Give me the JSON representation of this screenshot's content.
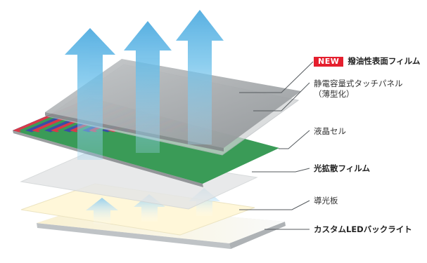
{
  "layers": [
    {
      "id": "film",
      "badge": "NEW",
      "label": "撥油性表面フィルム",
      "bold": true
    },
    {
      "id": "touch",
      "label_line1": "静電容量式タッチパネル",
      "label_line2": "（薄型化）",
      "bold": false
    },
    {
      "id": "lcd",
      "label": "液晶セル",
      "bold": false
    },
    {
      "id": "diffuser",
      "label": "光拡散フィルム",
      "bold": true
    },
    {
      "id": "lightguide",
      "label": "導光板",
      "bold": false
    },
    {
      "id": "backlight",
      "label": "カスタムLEDバックライト",
      "bold": true
    }
  ],
  "colors": {
    "badge_red": "#e51f2e",
    "arrow_blue": "#5fb9e6",
    "film_gray": "#9fa3a6",
    "lcd_red": "#d8394a",
    "lcd_green": "#3a9b57",
    "lcd_blue": "#3a4ea6"
  }
}
